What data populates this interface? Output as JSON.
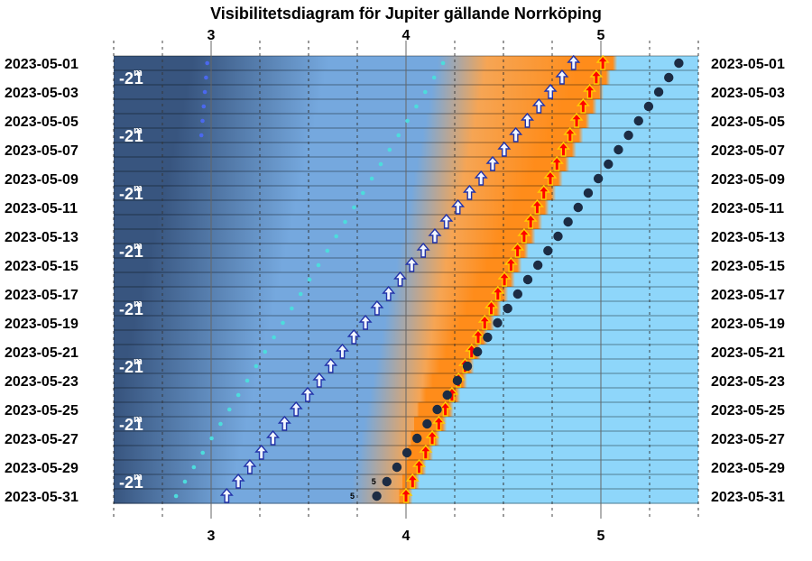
{
  "chart_data": {
    "type": "scatter",
    "title": "Visibilitetsdiagram för Jupiter gällande Norrköping",
    "x_axis": {
      "ticks": [
        3,
        4,
        5
      ],
      "range": [
        2.5,
        5.5
      ]
    },
    "dates": [
      "2023-05-01",
      "2023-05-02",
      "2023-05-03",
      "2023-05-04",
      "2023-05-05",
      "2023-05-06",
      "2023-05-07",
      "2023-05-08",
      "2023-05-09",
      "2023-05-10",
      "2023-05-11",
      "2023-05-12",
      "2023-05-13",
      "2023-05-14",
      "2023-05-15",
      "2023-05-16",
      "2023-05-17",
      "2023-05-18",
      "2023-05-19",
      "2023-05-20",
      "2023-05-21",
      "2023-05-22",
      "2023-05-23",
      "2023-05-24",
      "2023-05-25",
      "2023-05-26",
      "2023-05-27",
      "2023-05-28",
      "2023-05-29",
      "2023-05-30",
      "2023-05-31"
    ],
    "labeled_dates": [
      "2023-05-01",
      "2023-05-03",
      "2023-05-05",
      "2023-05-07",
      "2023-05-09",
      "2023-05-11",
      "2023-05-13",
      "2023-05-15",
      "2023-05-17",
      "2023-05-19",
      "2023-05-21",
      "2023-05-23",
      "2023-05-25",
      "2023-05-27",
      "2023-05-29",
      "2023-05-31"
    ],
    "magnitude_label": {
      "value": "-2",
      "superscript": "m",
      "suffix": "1"
    },
    "magnitude_label_rows": [
      1,
      5,
      9,
      13,
      17,
      21,
      25,
      29
    ],
    "sunrise": {
      "start": 5.07,
      "end": 4.02
    },
    "twilight_start": {
      "start": 4.3,
      "end": 3.85
    },
    "twilight_mid": {
      "start": 3.6,
      "end": 3.1
    },
    "series": [
      {
        "marker": "blue-small-dot",
        "start": 2.98,
        "end": 2.8,
        "rows": [
          0,
          1,
          2,
          3,
          4,
          5
        ]
      },
      {
        "marker": "cyan-small-dot",
        "start": 4.19,
        "end": 2.82,
        "rows": "all"
      },
      {
        "marker": "white-arrow",
        "start": 4.86,
        "end": 3.08,
        "rows": "all"
      },
      {
        "marker": "red-arrow",
        "start": 5.01,
        "end": 4.0,
        "rows": "all"
      },
      {
        "marker": "dark-dot",
        "start": 5.4,
        "end": 3.85,
        "rows": "all"
      }
    ],
    "inline_labels": [
      {
        "text": "5",
        "x": 3.86,
        "row": 29
      },
      {
        "text": "5",
        "x": 3.75,
        "row": 30
      }
    ],
    "colors": {
      "night": "#38557f",
      "twilight": "#75a8de",
      "dawn": "#f6a554",
      "sunrise_orange": "#ff8c1a",
      "day": "#8ed6fa",
      "dark_dot": "#1c2c44",
      "cyan_dot": "#4ddcdc",
      "blue_dot": "#4a68ee",
      "red_arrow": "#ff0000",
      "white_arrow": "#f2f6ff"
    }
  }
}
